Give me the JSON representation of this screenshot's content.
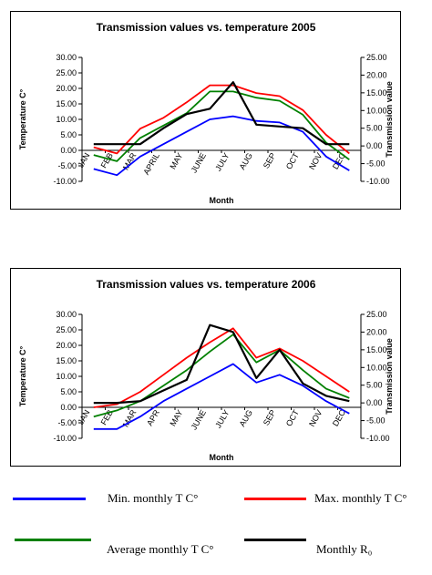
{
  "chart_data": [
    {
      "type": "line",
      "title": "Transmission values vs. temperature 2005",
      "xlabel": "Month",
      "ylabel": "Temperature C°",
      "y2label": "Transmission value",
      "categories": [
        "JAN",
        "FEB",
        "MAR",
        "APRIL",
        "MAY",
        "JUNE",
        "JULY",
        "AUG",
        "SEP",
        "OCT",
        "NOV",
        "DEC"
      ],
      "ylim": [
        -10,
        30
      ],
      "y2lim": [
        -10,
        25
      ],
      "yticks": [
        "30.00",
        "25.00",
        "20.00",
        "15.00",
        "10.00",
        "5.00",
        "0.00",
        "-5.00",
        "-10.00"
      ],
      "y2ticks": [
        "25.00",
        "20.00",
        "15.00",
        "10.00",
        "5.00",
        "0.00",
        "-5.00",
        "-10.00"
      ],
      "grid": false,
      "series": [
        {
          "name": "Min. monthly T C°",
          "color": "#0000ff",
          "axis": "left",
          "values": [
            -6,
            -8,
            -2,
            2,
            6,
            10,
            11,
            9.5,
            9,
            6,
            -2,
            -6.5
          ]
        },
        {
          "name": "Max. monthly T C°",
          "color": "#ff0000",
          "axis": "left",
          "values": [
            1,
            -1,
            7,
            10.5,
            15.5,
            21,
            21,
            18.5,
            17.5,
            13,
            5,
            -1
          ]
        },
        {
          "name": "Average monthly T C°",
          "color": "#008000",
          "axis": "left",
          "values": [
            -1.5,
            -3.5,
            4,
            8,
            12,
            19,
            19,
            17,
            16,
            11.5,
            2.5,
            -3
          ]
        },
        {
          "name": "Monthly R₀",
          "color": "#000000",
          "axis": "right",
          "values": [
            0.5,
            0.5,
            0.5,
            5,
            9,
            10.5,
            18,
            6,
            5.5,
            5,
            0.5,
            0.5
          ]
        }
      ]
    },
    {
      "type": "line",
      "title": "Transmission values vs. temperature 2006",
      "xlabel": "Month",
      "ylabel": "Temperature C°",
      "y2label": "Transmission value",
      "categories": [
        "JAN",
        "FEB",
        "MAR",
        "APR",
        "MAY",
        "JUNE",
        "JULY",
        "AUG",
        "SEP",
        "OCT",
        "NOV",
        "DEC"
      ],
      "ylim": [
        -10,
        30
      ],
      "y2lim": [
        -10,
        25
      ],
      "yticks": [
        "30.00",
        "25.00",
        "20.00",
        "15.00",
        "10.00",
        "5.00",
        "0.00",
        "-5.00",
        "-10.00"
      ],
      "y2ticks": [
        "25.00",
        "20.00",
        "15.00",
        "10.00",
        "5.00",
        "0.00",
        "-5.00",
        "-10.00"
      ],
      "grid": false,
      "series": [
        {
          "name": "Min. monthly T C°",
          "color": "#0000ff",
          "axis": "left",
          "values": [
            -7,
            -7,
            -3,
            2,
            6,
            10,
            14,
            8,
            10.5,
            7,
            2,
            -2
          ]
        },
        {
          "name": "Max. monthly T C°",
          "color": "#ff0000",
          "axis": "left",
          "values": [
            0,
            1,
            5,
            10.5,
            16,
            21,
            25.5,
            16,
            19,
            15,
            10,
            5
          ]
        },
        {
          "name": "Average monthly T C°",
          "color": "#008000",
          "axis": "left",
          "values": [
            -3,
            -1,
            2,
            7,
            12,
            18,
            23.5,
            14.5,
            18.5,
            12,
            6,
            3
          ]
        },
        {
          "name": "Monthly R₀",
          "color": "#000000",
          "axis": "right",
          "values": [
            0,
            0,
            0.5,
            3.5,
            6.5,
            22,
            20,
            7,
            15,
            5.5,
            2,
            0.5
          ]
        }
      ]
    }
  ],
  "legend": {
    "items": [
      {
        "label": "Min. monthly T C°",
        "color": "#0000ff"
      },
      {
        "label": "Max. monthly T C°",
        "color": "#ff0000"
      },
      {
        "label": "Average monthly T C°",
        "color": "#008000"
      },
      {
        "label": "Monthly R₀",
        "color": "#000000"
      }
    ]
  }
}
